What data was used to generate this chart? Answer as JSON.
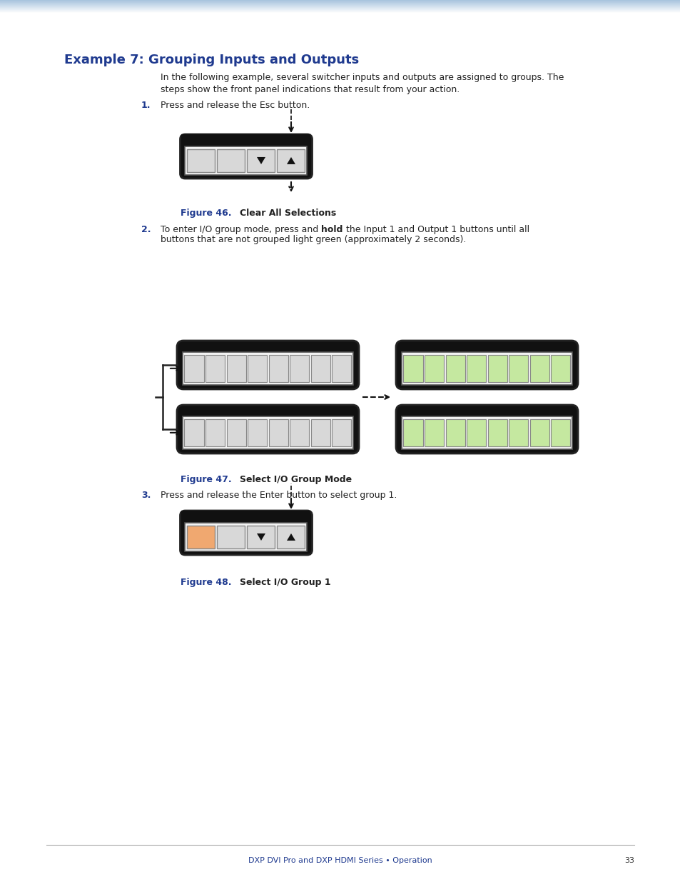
{
  "title": "Example 7: Grouping Inputs and Outputs",
  "title_color": "#1f3a8f",
  "bg_color": "#ffffff",
  "body_line1": "In the following example, several switcher inputs and outputs are assigned to groups. The",
  "body_line2": "steps show the front panel indications that result from your action.",
  "step1_text": "Press and release the Esc button.",
  "step2_pre": "To enter I/O group mode, press and ",
  "step2_bold": "hold",
  "step2_post": " the Input 1 and Output 1 buttons until all",
  "step2_line2": "buttons that are not grouped light green (approximately 2 seconds).",
  "step3_text": "Press and release the Enter button to select group 1.",
  "fig46_label": "Figure 46.",
  "fig46_title": "Clear All Selections",
  "fig47_label": "Figure 47.",
  "fig47_title": "Select I/O Group Mode",
  "fig48_label": "Figure 48.",
  "fig48_title": "Select I/O Group 1",
  "footer_text": "DXP DVI Pro and DXP HDMI Series • Operation",
  "page_num": "33",
  "button_color_gray": "#d8d8d8",
  "button_color_green": "#c5e8a0",
  "button_color_orange": "#f0a870",
  "panel_black": "#111111",
  "panel_border_color": "#222222",
  "inner_bg": "#e8e8e8",
  "header_bar_top": "#b8cce4",
  "header_bar_bottom": "#dce9f5"
}
